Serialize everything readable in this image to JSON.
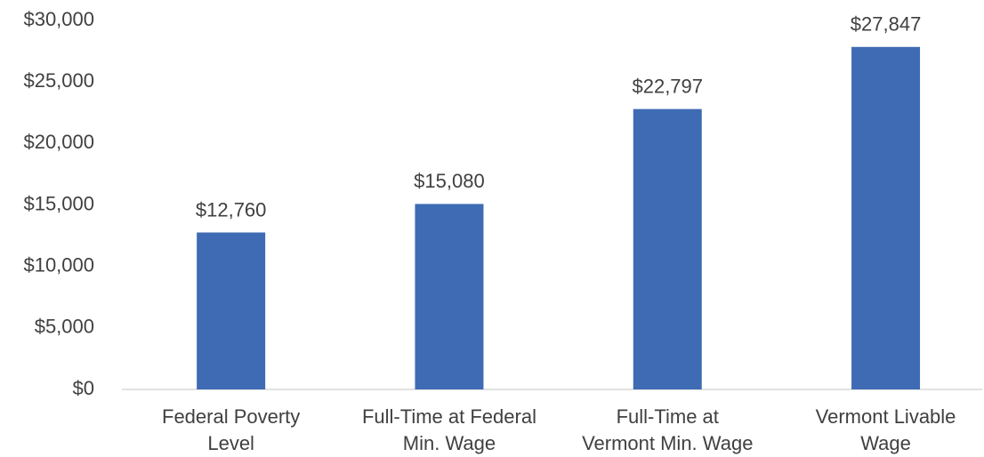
{
  "chart_data": {
    "type": "bar",
    "categories": [
      [
        "Federal Poverty",
        "Level"
      ],
      [
        "Full-Time at Federal",
        "Min. Wage"
      ],
      [
        "Full-Time at",
        "Vermont Min. Wage"
      ],
      [
        "Vermont Livable",
        "Wage"
      ]
    ],
    "values": [
      12760,
      15080,
      22797,
      27847
    ],
    "value_labels": [
      "$12,760",
      "$15,080",
      "$22,797",
      "$27,847"
    ],
    "color": "#3e6bb4",
    "ylim": [
      0,
      30000
    ],
    "yticks": [
      {
        "value": 0,
        "label": "$0"
      },
      {
        "value": 5000,
        "label": "$5,000"
      },
      {
        "value": 10000,
        "label": "$10,000"
      },
      {
        "value": 15000,
        "label": "$15,000"
      },
      {
        "value": 20000,
        "label": "$20,000"
      },
      {
        "value": 25000,
        "label": "$25,000"
      },
      {
        "value": 30000,
        "label": "$30,000"
      }
    ],
    "grid": false
  }
}
